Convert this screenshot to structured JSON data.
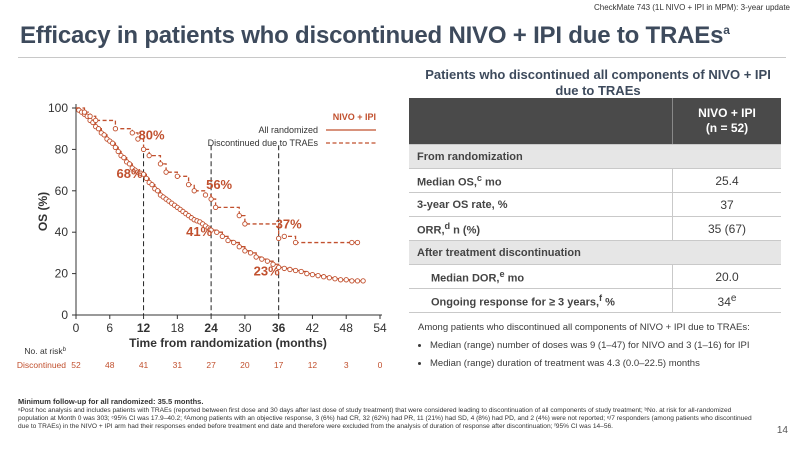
{
  "header": {
    "tag": "CheckMate 743 (1L NIVO + IPI in MPM): 3-year update",
    "title": "Efficacy in patients who discontinued NIVO + IPI due to TRAEs",
    "title_sup": "a",
    "page_number": "14"
  },
  "colors": {
    "accent": "#c1502e",
    "title": "#3d4a5c",
    "table_header": "#4a4a4a",
    "section": "#e6e6e6"
  },
  "chart_data": {
    "type": "line",
    "title": "",
    "xlabel": "Time from randomization (months)",
    "ylabel": "OS (%)",
    "xlim": [
      0,
      54
    ],
    "ylim": [
      0,
      100
    ],
    "xticks": [
      0,
      6,
      12,
      18,
      24,
      30,
      36,
      42,
      48,
      54
    ],
    "yticks": [
      0,
      20,
      40,
      60,
      80,
      100
    ],
    "bold_xticks": [
      12,
      24,
      36
    ],
    "legend_title": "NIVO + IPI",
    "series": [
      {
        "name": "All randomized",
        "style": "solid",
        "x": [
          0,
          0.5,
          1,
          1.5,
          2,
          2.5,
          3,
          3.5,
          4,
          4.5,
          5,
          5.5,
          6,
          6.5,
          7,
          7.5,
          8,
          8.5,
          9,
          9.5,
          10,
          10.5,
          11,
          11.5,
          12,
          12.5,
          13,
          13.5,
          14,
          14.5,
          15,
          15.5,
          16,
          16.5,
          17,
          17.5,
          18,
          18.5,
          19,
          19.5,
          20,
          20.5,
          21,
          21.5,
          22,
          22.5,
          23,
          23.5,
          24,
          25,
          26,
          27,
          28,
          29,
          30,
          31,
          32,
          33,
          34,
          35,
          36,
          37,
          38,
          39,
          40,
          41,
          42,
          43,
          44,
          45,
          46,
          47,
          48,
          49,
          50,
          51
        ],
        "y": [
          100,
          99,
          98,
          97,
          96,
          94,
          93,
          91,
          90,
          88,
          87,
          85,
          84,
          83,
          81,
          79,
          77,
          76,
          74,
          73,
          71,
          70,
          69,
          68.5,
          68,
          66,
          64,
          63,
          61,
          60,
          58,
          57,
          56,
          55,
          54,
          53,
          52,
          51,
          50,
          49,
          48,
          47,
          46,
          45.5,
          45,
          44,
          43,
          42,
          41,
          40,
          38,
          36,
          35,
          33,
          31,
          30,
          28,
          27,
          26,
          24.5,
          23,
          22.5,
          22,
          21.5,
          21,
          20,
          19.5,
          19,
          18.5,
          18,
          17.5,
          17,
          17,
          16.5,
          16.5,
          16.5
        ]
      },
      {
        "name": "Discontinued due to TRAEs",
        "style": "dashed",
        "x": [
          0,
          1.5,
          2.5,
          3.5,
          7,
          10,
          11,
          12,
          13,
          15,
          16,
          18,
          20,
          21,
          23,
          24,
          24.8,
          29,
          30,
          36,
          37,
          39,
          49,
          50
        ],
        "y": [
          100,
          98,
          96,
          94,
          90,
          88,
          85,
          80,
          77,
          73,
          69,
          67,
          63,
          60,
          58,
          56,
          52,
          48,
          44,
          37,
          38,
          35,
          35,
          35
        ]
      }
    ],
    "annotations": [
      {
        "text": "80%",
        "x": 12,
        "y": 80,
        "series": "Discontinued due to TRAEs"
      },
      {
        "text": "68%",
        "x": 12,
        "y": 68,
        "series": "All randomized"
      },
      {
        "text": "56%",
        "x": 24,
        "y": 56,
        "series": "Discontinued due to TRAEs"
      },
      {
        "text": "41%",
        "x": 24,
        "y": 41,
        "series": "All randomized"
      },
      {
        "text": "37%",
        "x": 36,
        "y": 37,
        "series": "Discontinued due to TRAEs"
      },
      {
        "text": "23%",
        "x": 36,
        "y": 23,
        "series": "All randomized"
      }
    ],
    "at_risk": {
      "label": "No. at risk",
      "label_sup": "b",
      "row_label": "Discontinued",
      "times": [
        0,
        6,
        12,
        18,
        24,
        30,
        36,
        42,
        48,
        54
      ],
      "values": [
        "52",
        "48",
        "41",
        "31",
        "27",
        "20",
        "17",
        "12",
        "3",
        "0"
      ]
    }
  },
  "table": {
    "title": "Patients who discontinued all components of NIVO + IPI due to TRAEs",
    "col_header_1": "NIVO + IPI",
    "col_header_2": "(n = 52)",
    "rows": [
      {
        "kind": "section",
        "label": "From randomization"
      },
      {
        "kind": "row",
        "label": "Median OS,",
        "sup": "c",
        "label_tail": " mo",
        "value": "25.4",
        "indent": false
      },
      {
        "kind": "row",
        "label": "3-year OS rate, %",
        "sup": "",
        "label_tail": "",
        "value": "37",
        "indent": false
      },
      {
        "kind": "row",
        "label": "ORR,",
        "sup": "d",
        "label_tail": " n (%)",
        "value": "35 (67)",
        "indent": false
      },
      {
        "kind": "section",
        "label": "After treatment discontinuation"
      },
      {
        "kind": "row",
        "label": "Median DOR,",
        "sup": "e",
        "label_tail": " mo",
        "value": "20.0",
        "indent": true
      },
      {
        "kind": "row",
        "label": "Ongoing response for ≥ 3 years,",
        "sup": "f",
        "label_tail": " %",
        "value": "34",
        "value_sup": "e",
        "indent": true
      }
    ]
  },
  "notes": {
    "intro": "Among patients who discontinued all components of NIVO + IPI due to TRAEs:",
    "bullets": [
      "Median (range) number of doses was 9 (1–47) for NIVO and 3 (1–16) for IPI",
      "Median (range) duration of treatment was 4.3 (0.0–22.5) months"
    ]
  },
  "footnotes": {
    "followup": "Minimum follow-up for all randomized: 35.5 months.",
    "text": "ᵃPost hoc analysis and includes patients with TRAEs (reported between first dose and 30 days after last dose of study treatment) that were considered leading to discontinuation of all components of study treatment; ᵇNo. at risk for all-randomized population at Month 0 was 303; ᶜ95% CI was 17.9–40.2; ᵈAmong patients with an objective response, 3 (6%) had CR, 32 (62%) had PR, 11 (21%) had SD, 4 (8%) had PD, and 2 (4%) were not reported; ᵉ/7 responders (among patients who discontinued due to TRAEs) in the NIVO + IPI arm had their responses ended before treatment end date and therefore were excluded from the analysis of duration of response after discontinuation; ᶠ95% CI was 14–56."
  }
}
